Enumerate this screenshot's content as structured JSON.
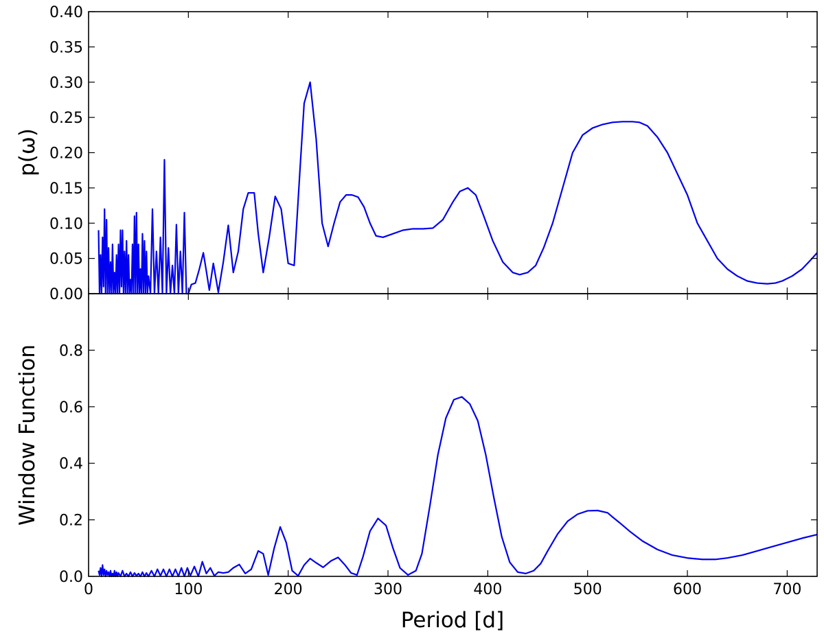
{
  "chart_data": [
    {
      "type": "line",
      "panel": "top",
      "title": "",
      "xlabel": "",
      "ylabel": "p(ω)",
      "xlim": [
        0,
        730
      ],
      "ylim": [
        0,
        0.4
      ],
      "x_ticks": [
        0,
        100,
        200,
        300,
        400,
        500,
        600,
        700
      ],
      "y_ticks": [
        "0.00",
        "0.05",
        "0.10",
        "0.15",
        "0.20",
        "0.25",
        "0.30",
        "0.35",
        "0.40"
      ],
      "grid": false,
      "legend": "none",
      "line_color": "#0000ee",
      "series": [
        {
          "x": [
            10,
            11,
            12,
            13,
            14,
            15,
            16,
            17,
            18,
            19,
            20,
            21,
            22,
            23,
            24,
            25,
            26,
            27,
            28,
            29,
            30,
            31,
            32,
            33,
            34,
            35,
            36,
            37,
            38,
            39,
            40,
            41,
            42,
            43,
            44,
            45,
            46,
            47,
            48,
            49,
            50,
            51,
            52,
            53,
            54,
            55,
            56,
            57,
            58,
            59,
            60,
            62,
            64,
            66,
            68,
            70,
            72,
            74,
            76,
            78,
            80,
            82,
            84,
            86,
            88,
            90,
            92,
            94,
            96,
            98,
            100,
            103,
            107,
            111,
            115,
            118,
            121,
            125,
            130,
            135,
            140,
            145,
            150,
            155,
            160,
            166,
            170,
            175,
            181,
            187,
            193,
            200,
            206,
            212,
            216,
            222,
            228,
            234,
            240,
            246,
            252,
            258,
            264,
            270,
            276,
            282,
            288,
            295,
            305,
            315,
            325,
            335,
            345,
            355,
            365,
            372,
            380,
            388,
            396,
            405,
            415,
            425,
            432,
            440,
            448,
            456,
            465,
            475,
            485,
            495,
            505,
            515,
            525,
            535,
            545,
            552,
            560,
            570,
            580,
            590,
            600,
            610,
            620,
            630,
            640,
            650,
            660,
            670,
            680,
            688,
            695,
            705,
            715,
            725,
            730
          ],
          "y": [
            0.09,
            0.0,
            0.055,
            0.0,
            0.08,
            0.01,
            0.12,
            0.0,
            0.105,
            0.0,
            0.065,
            0.0,
            0.045,
            0.0,
            0.07,
            0.0,
            0.03,
            0.0,
            0.055,
            0.0,
            0.07,
            0.0,
            0.09,
            0.01,
            0.09,
            0.0,
            0.06,
            0.0,
            0.075,
            0.0,
            0.055,
            0.0,
            0.02,
            0.0,
            0.07,
            0.0,
            0.11,
            0.0,
            0.115,
            0.0,
            0.07,
            0.0,
            0.035,
            0.0,
            0.085,
            0.0,
            0.075,
            0.0,
            0.06,
            0.0,
            0.025,
            0.0,
            0.12,
            0.0,
            0.06,
            0.0,
            0.08,
            0.0,
            0.19,
            0.0,
            0.065,
            0.0,
            0.04,
            0.0,
            0.098,
            0.0,
            0.06,
            0.0,
            0.115,
            0.0,
            0.0,
            0.013,
            0.015,
            0.035,
            0.058,
            0.032,
            0.005,
            0.043,
            0.002,
            0.045,
            0.097,
            0.03,
            0.06,
            0.12,
            0.143,
            0.143,
            0.085,
            0.03,
            0.08,
            0.138,
            0.12,
            0.043,
            0.04,
            0.18,
            0.27,
            0.3,
            0.22,
            0.1,
            0.067,
            0.1,
            0.13,
            0.14,
            0.14,
            0.137,
            0.123,
            0.1,
            0.082,
            0.08,
            0.085,
            0.09,
            0.092,
            0.092,
            0.093,
            0.105,
            0.13,
            0.145,
            0.15,
            0.14,
            0.11,
            0.075,
            0.045,
            0.03,
            0.027,
            0.03,
            0.04,
            0.065,
            0.1,
            0.15,
            0.2,
            0.225,
            0.235,
            0.24,
            0.243,
            0.244,
            0.244,
            0.243,
            0.238,
            0.222,
            0.2,
            0.17,
            0.14,
            0.1,
            0.075,
            0.05,
            0.035,
            0.025,
            0.018,
            0.015,
            0.014,
            0.015,
            0.018,
            0.025,
            0.035,
            0.05,
            0.058
          ]
        }
      ]
    },
    {
      "type": "line",
      "panel": "bottom",
      "title": "",
      "xlabel": "Period [d]",
      "ylabel": "Window Function",
      "xlim": [
        0,
        730
      ],
      "ylim": [
        0,
        1.0
      ],
      "x_ticks": [
        0,
        100,
        200,
        300,
        400,
        500,
        600,
        700
      ],
      "y_ticks": [
        "0.0",
        "0.2",
        "0.4",
        "0.6",
        "0.8"
      ],
      "grid": false,
      "legend": "none",
      "line_color": "#0000ee",
      "series": [
        {
          "x": [
            10,
            11,
            12,
            13,
            14,
            15,
            16,
            17,
            18,
            19,
            20,
            21,
            22,
            23,
            24,
            25,
            26,
            27,
            28,
            29,
            30,
            32,
            34,
            36,
            38,
            40,
            42,
            44,
            46,
            48,
            50,
            52,
            54,
            56,
            58,
            60,
            63,
            66,
            69,
            72,
            75,
            78,
            81,
            84,
            87,
            90,
            93,
            96,
            99,
            102,
            106,
            110,
            114,
            118,
            122,
            126,
            130,
            135,
            140,
            145,
            151,
            157,
            163,
            170,
            175,
            180,
            186,
            192,
            198,
            204,
            210,
            216,
            222,
            228,
            235,
            243,
            250,
            257,
            263,
            269,
            275,
            282,
            290,
            298,
            305,
            312,
            320,
            328,
            334,
            342,
            350,
            358,
            366,
            374,
            382,
            390,
            398,
            406,
            414,
            422,
            430,
            438,
            446,
            453,
            460,
            470,
            480,
            490,
            500,
            510,
            520,
            525,
            532,
            542,
            555,
            570,
            585,
            600,
            615,
            628,
            640,
            655,
            670,
            685,
            700,
            715,
            730
          ],
          "y": [
            0.02,
            0.005,
            0.03,
            0.0,
            0.04,
            0.005,
            0.025,
            0.0,
            0.02,
            0.005,
            0.015,
            0.0,
            0.02,
            0.0,
            0.01,
            0.0,
            0.02,
            0.0,
            0.015,
            0.0,
            0.012,
            0.0,
            0.02,
            0.0,
            0.01,
            0.0,
            0.015,
            0.0,
            0.012,
            0.002,
            0.01,
            0.0,
            0.015,
            0.0,
            0.012,
            0.0,
            0.02,
            0.0,
            0.025,
            0.002,
            0.025,
            0.0,
            0.025,
            0.0,
            0.025,
            0.0,
            0.03,
            0.0,
            0.03,
            0.002,
            0.035,
            0.0,
            0.052,
            0.01,
            0.03,
            0.002,
            0.015,
            0.012,
            0.015,
            0.03,
            0.042,
            0.01,
            0.025,
            0.09,
            0.08,
            0.005,
            0.1,
            0.175,
            0.12,
            0.02,
            0.002,
            0.04,
            0.063,
            0.048,
            0.032,
            0.055,
            0.067,
            0.04,
            0.012,
            0.005,
            0.07,
            0.16,
            0.205,
            0.18,
            0.1,
            0.03,
            0.005,
            0.02,
            0.08,
            0.25,
            0.43,
            0.56,
            0.625,
            0.635,
            0.61,
            0.55,
            0.43,
            0.28,
            0.14,
            0.05,
            0.015,
            0.01,
            0.02,
            0.045,
            0.09,
            0.15,
            0.195,
            0.22,
            0.232,
            0.233,
            0.225,
            0.21,
            0.19,
            0.16,
            0.125,
            0.095,
            0.075,
            0.065,
            0.06,
            0.06,
            0.065,
            0.075,
            0.09,
            0.105,
            0.12,
            0.135,
            0.148
          ]
        }
      ]
    }
  ]
}
